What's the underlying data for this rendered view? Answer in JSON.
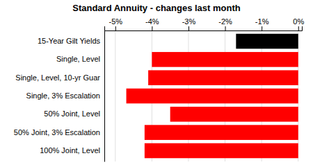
{
  "chart_data": {
    "type": "bar",
    "orientation": "horizontal",
    "title": "Standard Annuity - changes last month",
    "categories": [
      "15-Year Gilt Yields",
      "Single, Level",
      "Single, Level, 10-yr Guar",
      "Single, 3% Escalation",
      "50% Joint, Level",
      "50% Joint, 3% Escalation",
      "100% Joint, Level"
    ],
    "values": [
      -1.7,
      -4.0,
      -4.1,
      -4.7,
      -3.5,
      -4.2,
      -4.2
    ],
    "colors": [
      "#000000",
      "#ff0000",
      "#ff0000",
      "#ff0000",
      "#ff0000",
      "#ff0000",
      "#ff0000"
    ],
    "xlim": [
      -5.3,
      0.1
    ],
    "xticks": [
      {
        "value": -5,
        "label": "-5%"
      },
      {
        "value": -4,
        "label": "-4%"
      },
      {
        "value": -3,
        "label": "-3%"
      },
      {
        "value": -2,
        "label": "-2%"
      },
      {
        "value": -1,
        "label": "-1%"
      },
      {
        "value": 0,
        "label": "0%"
      }
    ],
    "grid": true
  }
}
